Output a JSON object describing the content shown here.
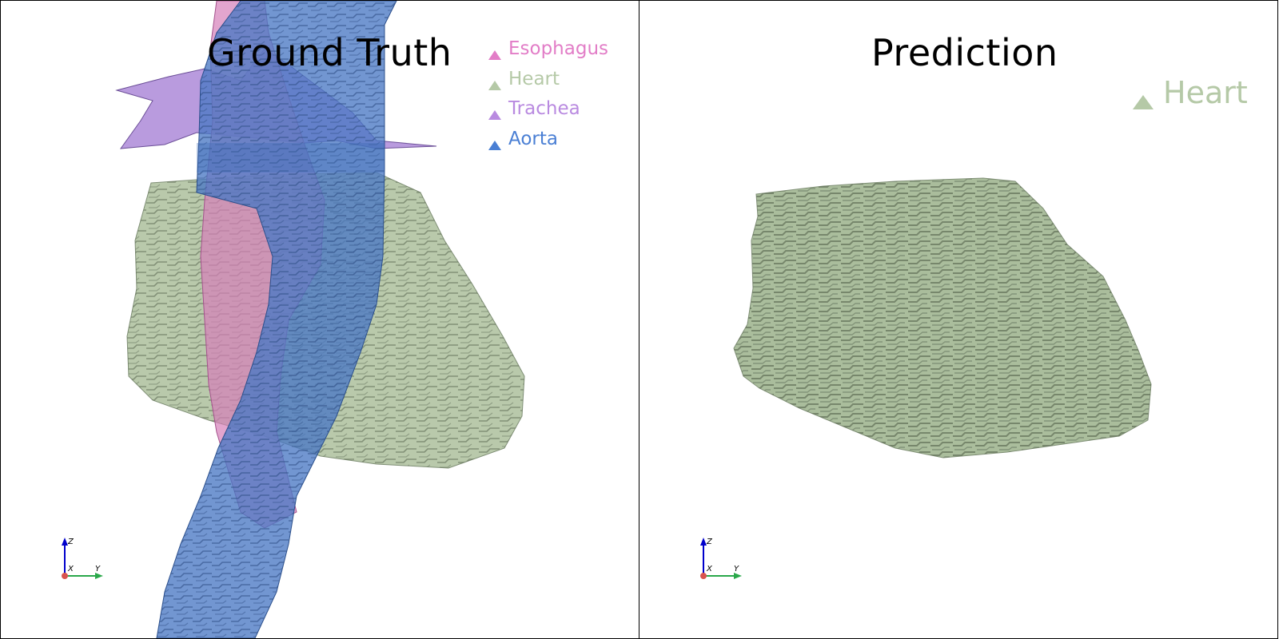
{
  "panels": [
    {
      "title": "Ground Truth",
      "legend": [
        {
          "label": "Esophagus",
          "color": "#e27dc7"
        },
        {
          "label": "Heart",
          "color": "#b5c9a7"
        },
        {
          "label": "Trachea",
          "color": "#b98ae0"
        },
        {
          "label": "Aorta",
          "color": "#4a7fd4"
        }
      ],
      "axes": {
        "z": "Z",
        "x": "X",
        "y": "Y"
      }
    },
    {
      "title": "Prediction",
      "legend": [
        {
          "label": "Heart",
          "color": "#b5c9a7"
        }
      ],
      "axes": {
        "z": "Z",
        "x": "X",
        "y": "Y"
      }
    }
  ],
  "colors": {
    "heart": "#a9bc99",
    "heart_dark": "#5f6e57",
    "aorta": "#4a79c4",
    "esophagus": "#d67fb9",
    "trachea": "#a27ad3",
    "axis_z": "#0000cc",
    "axis_y": "#2aa84a",
    "axis_origin": "#d9534f"
  }
}
